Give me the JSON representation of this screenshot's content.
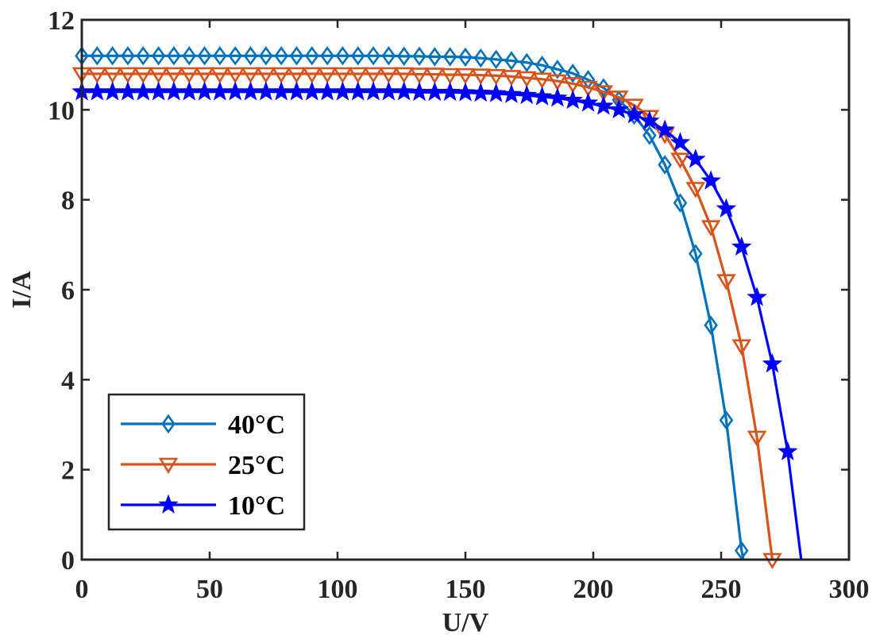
{
  "chart_data": {
    "type": "line",
    "xlabel": "U/V",
    "ylabel": "I/A",
    "xlim": [
      0,
      300
    ],
    "ylim": [
      0,
      12
    ],
    "xticks": [
      "0",
      "50",
      "100",
      "150",
      "200",
      "250",
      "300"
    ],
    "yticks": [
      "0",
      "2",
      "4",
      "6",
      "8",
      "10",
      "12"
    ],
    "grid": false,
    "legend_position": "bottom-left",
    "series": [
      {
        "name": "40°C",
        "color": "#0072BD",
        "marker": "diamond",
        "points": [
          [
            0,
            11.2
          ],
          [
            6,
            11.2
          ],
          [
            12,
            11.2
          ],
          [
            18,
            11.2
          ],
          [
            24,
            11.2
          ],
          [
            30,
            11.2
          ],
          [
            36,
            11.2
          ],
          [
            42,
            11.2
          ],
          [
            48,
            11.2
          ],
          [
            54,
            11.2
          ],
          [
            60,
            11.2
          ],
          [
            66,
            11.2
          ],
          [
            72,
            11.2
          ],
          [
            78,
            11.2
          ],
          [
            84,
            11.2
          ],
          [
            90,
            11.2
          ],
          [
            96,
            11.2
          ],
          [
            102,
            11.2
          ],
          [
            108,
            11.2
          ],
          [
            114,
            11.2
          ],
          [
            120,
            11.2
          ],
          [
            126,
            11.19
          ],
          [
            132,
            11.19
          ],
          [
            138,
            11.18
          ],
          [
            144,
            11.18
          ],
          [
            150,
            11.17
          ],
          [
            156,
            11.15
          ],
          [
            162,
            11.12
          ],
          [
            168,
            11.09
          ],
          [
            174,
            11.05
          ],
          [
            180,
            10.99
          ],
          [
            186,
            10.9
          ],
          [
            192,
            10.81
          ],
          [
            198,
            10.67
          ],
          [
            204,
            10.49
          ],
          [
            210,
            10.22
          ],
          [
            216,
            9.88
          ],
          [
            222,
            9.43
          ],
          [
            228,
            8.78
          ],
          [
            234,
            7.93
          ],
          [
            240,
            6.8
          ],
          [
            246,
            5.21
          ],
          [
            252,
            3.1
          ],
          [
            258,
            0.2
          ]
        ],
        "curve_end": [
          258.7,
          0
        ]
      },
      {
        "name": "25°C",
        "color": "#D95319",
        "marker": "triangle-down",
        "points": [
          [
            0,
            10.8
          ],
          [
            6,
            10.8
          ],
          [
            12,
            10.8
          ],
          [
            18,
            10.8
          ],
          [
            24,
            10.8
          ],
          [
            30,
            10.8
          ],
          [
            36,
            10.8
          ],
          [
            42,
            10.8
          ],
          [
            48,
            10.8
          ],
          [
            54,
            10.8
          ],
          [
            60,
            10.8
          ],
          [
            66,
            10.8
          ],
          [
            72,
            10.8
          ],
          [
            78,
            10.8
          ],
          [
            84,
            10.8
          ],
          [
            90,
            10.8
          ],
          [
            96,
            10.8
          ],
          [
            102,
            10.8
          ],
          [
            108,
            10.8
          ],
          [
            114,
            10.8
          ],
          [
            120,
            10.8
          ],
          [
            126,
            10.8
          ],
          [
            132,
            10.79
          ],
          [
            138,
            10.79
          ],
          [
            144,
            10.78
          ],
          [
            150,
            10.78
          ],
          [
            156,
            10.77
          ],
          [
            162,
            10.76
          ],
          [
            168,
            10.74
          ],
          [
            174,
            10.71
          ],
          [
            180,
            10.68
          ],
          [
            186,
            10.64
          ],
          [
            192,
            10.58
          ],
          [
            198,
            10.5
          ],
          [
            204,
            10.4
          ],
          [
            210,
            10.28
          ],
          [
            216,
            10.1
          ],
          [
            222,
            9.85
          ],
          [
            228,
            9.45
          ],
          [
            234,
            8.9
          ],
          [
            240,
            8.25
          ],
          [
            246,
            7.4
          ],
          [
            252,
            6.2
          ],
          [
            258,
            4.75
          ],
          [
            264,
            2.72
          ],
          [
            270,
            0
          ]
        ],
        "curve_end": [
          270,
          0
        ]
      },
      {
        "name": "10°C",
        "color": "#0000FF",
        "marker": "pentagram",
        "points": [
          [
            0,
            10.4
          ],
          [
            6,
            10.4
          ],
          [
            12,
            10.4
          ],
          [
            18,
            10.4
          ],
          [
            24,
            10.4
          ],
          [
            30,
            10.4
          ],
          [
            36,
            10.4
          ],
          [
            42,
            10.4
          ],
          [
            48,
            10.4
          ],
          [
            54,
            10.4
          ],
          [
            60,
            10.4
          ],
          [
            66,
            10.4
          ],
          [
            72,
            10.4
          ],
          [
            78,
            10.4
          ],
          [
            84,
            10.4
          ],
          [
            90,
            10.4
          ],
          [
            96,
            10.4
          ],
          [
            102,
            10.4
          ],
          [
            108,
            10.4
          ],
          [
            114,
            10.4
          ],
          [
            120,
            10.4
          ],
          [
            126,
            10.4
          ],
          [
            132,
            10.39
          ],
          [
            138,
            10.39
          ],
          [
            144,
            10.39
          ],
          [
            150,
            10.38
          ],
          [
            156,
            10.37
          ],
          [
            162,
            10.36
          ],
          [
            168,
            10.34
          ],
          [
            174,
            10.32
          ],
          [
            180,
            10.29
          ],
          [
            186,
            10.26
          ],
          [
            192,
            10.21
          ],
          [
            198,
            10.15
          ],
          [
            204,
            10.08
          ],
          [
            210,
            10.0
          ],
          [
            216,
            9.89
          ],
          [
            222,
            9.75
          ],
          [
            228,
            9.55
          ],
          [
            234,
            9.27
          ],
          [
            240,
            8.9
          ],
          [
            246,
            8.42
          ],
          [
            252,
            7.8
          ],
          [
            258,
            6.95
          ],
          [
            264,
            5.83
          ],
          [
            270,
            4.35
          ],
          [
            276,
            2.4
          ]
        ],
        "curve_end": [
          281.3,
          0
        ]
      }
    ]
  }
}
